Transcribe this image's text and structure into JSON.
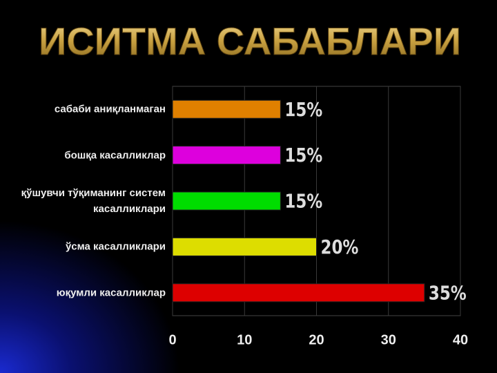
{
  "chart_data": {
    "type": "bar",
    "orientation": "horizontal",
    "title": "ИСИТМА САБАБЛАРИ",
    "categories": [
      "сабаби аниқланмаган",
      "бошқа касалликлар",
      "қўшувчи тўқиманинг систем\nкасалликлари",
      "ўсма касалликлари",
      "юқумли касалликлар"
    ],
    "values": [
      15,
      15,
      15,
      20,
      35
    ],
    "value_labels": [
      "15%",
      "15%",
      "15%",
      "20%",
      "35%"
    ],
    "colors": [
      "#e08000",
      "#dd00dd",
      "#00dd00",
      "#dddd00",
      "#dd0000"
    ],
    "xlim": [
      0,
      40
    ],
    "xticks": [
      0,
      10,
      20,
      30,
      40
    ],
    "grid": true
  }
}
